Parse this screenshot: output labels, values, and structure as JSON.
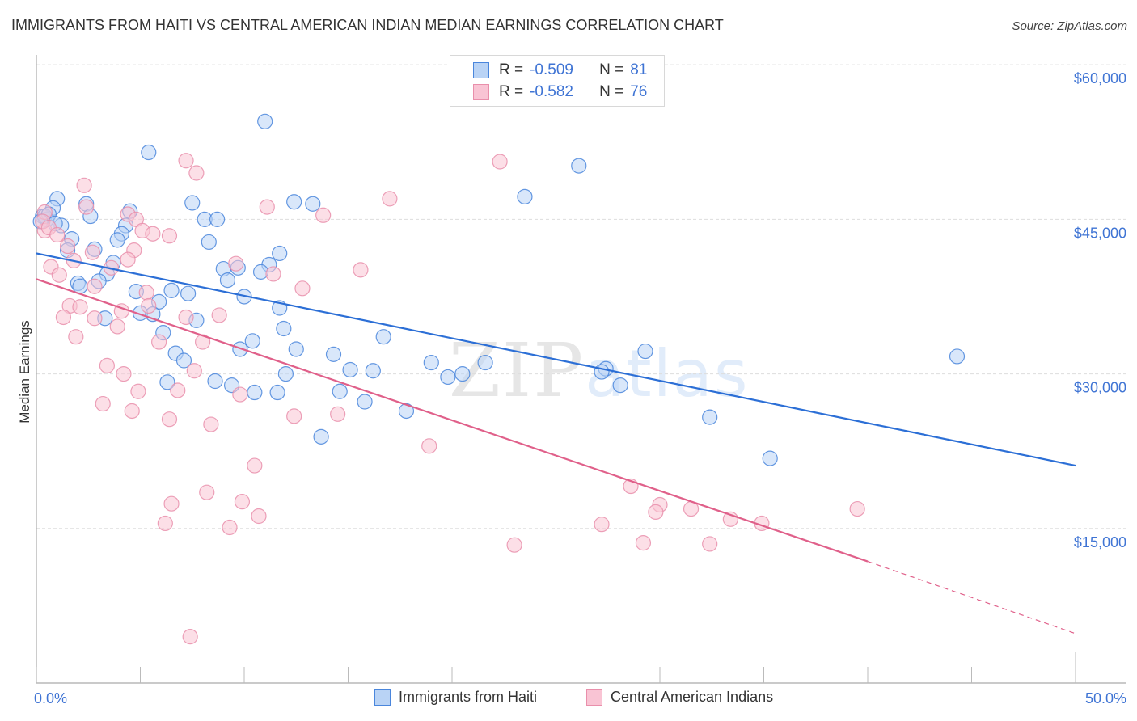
{
  "header": {
    "title": "IMMIGRANTS FROM HAITI VS CENTRAL AMERICAN INDIAN MEDIAN EARNINGS CORRELATION CHART",
    "source": "Source: ZipAtlas.com"
  },
  "legend": {
    "rows": [
      {
        "r_label": "R =",
        "r_value": "-0.509",
        "n_label": "N =",
        "n_value": "81"
      },
      {
        "r_label": "R =",
        "r_value": "-0.582",
        "n_label": "N =",
        "n_value": "76"
      }
    ]
  },
  "bottom_legend": [
    "Immigrants from Haiti",
    "Central American Indians"
  ],
  "watermark": {
    "zip": "ZIP",
    "atlas": "atlas"
  },
  "colors": {
    "blue_fill": "#b9d3f5",
    "blue_stroke": "#4a86dc",
    "blue_line": "#2c6fd6",
    "pink_fill": "#f9c4d4",
    "pink_stroke": "#e98fab",
    "pink_line": "#e0608a",
    "tick_label": "#3f74d4"
  },
  "chart_data": {
    "type": "scatter",
    "title": "IMMIGRANTS FROM HAITI VS CENTRAL AMERICAN INDIAN MEDIAN EARNINGS CORRELATION CHART",
    "xlabel": "",
    "ylabel": "Median Earnings",
    "xlim": [
      0,
      50
    ],
    "ylim": [
      0,
      62000
    ],
    "x_tick_labels": [
      "0.0%",
      "50.0%"
    ],
    "y_ticks": [
      15000,
      30000,
      45000,
      60000
    ],
    "y_tick_labels": [
      "$15,000",
      "$30,000",
      "$45,000",
      "$60,000"
    ],
    "grid": true,
    "legend_position": "top-center",
    "series": [
      {
        "name": "Immigrants from Haiti",
        "R": -0.509,
        "N": 81,
        "trend": {
          "x": [
            0,
            50
          ],
          "y": [
            41700,
            21100
          ]
        },
        "points": [
          [
            11.0,
            54500
          ],
          [
            5.4,
            51500
          ],
          [
            26.1,
            50200
          ],
          [
            23.5,
            47200
          ],
          [
            1.0,
            47000
          ],
          [
            7.5,
            46600
          ],
          [
            12.4,
            46700
          ],
          [
            13.3,
            46500
          ],
          [
            2.4,
            46500
          ],
          [
            0.8,
            46100
          ],
          [
            4.5,
            45800
          ],
          [
            2.6,
            45300
          ],
          [
            0.3,
            45300
          ],
          [
            0.5,
            45000
          ],
          [
            8.1,
            45000
          ],
          [
            8.7,
            45000
          ],
          [
            1.2,
            44400
          ],
          [
            4.3,
            44400
          ],
          [
            1.7,
            43100
          ],
          [
            4.1,
            43600
          ],
          [
            3.9,
            43000
          ],
          [
            8.3,
            42800
          ],
          [
            1.5,
            42000
          ],
          [
            2.8,
            42100
          ],
          [
            11.7,
            41700
          ],
          [
            3.7,
            40800
          ],
          [
            11.2,
            40600
          ],
          [
            9.0,
            40200
          ],
          [
            9.7,
            40300
          ],
          [
            10.8,
            39900
          ],
          [
            3.4,
            39700
          ],
          [
            9.2,
            39100
          ],
          [
            3.0,
            39000
          ],
          [
            2.0,
            38800
          ],
          [
            2.1,
            38500
          ],
          [
            6.5,
            38100
          ],
          [
            4.8,
            38000
          ],
          [
            7.3,
            37800
          ],
          [
            10.0,
            37500
          ],
          [
            5.9,
            37000
          ],
          [
            11.7,
            36400
          ],
          [
            5.0,
            35900
          ],
          [
            5.6,
            35800
          ],
          [
            3.3,
            35400
          ],
          [
            7.7,
            35200
          ],
          [
            6.1,
            34000
          ],
          [
            11.9,
            34400
          ],
          [
            16.7,
            33600
          ],
          [
            10.4,
            33200
          ],
          [
            12.5,
            32400
          ],
          [
            9.8,
            32400
          ],
          [
            29.3,
            32200
          ],
          [
            44.3,
            31700
          ],
          [
            6.7,
            32000
          ],
          [
            14.3,
            31900
          ],
          [
            7.1,
            31300
          ],
          [
            21.6,
            31100
          ],
          [
            19.0,
            31100
          ],
          [
            15.1,
            30400
          ],
          [
            16.2,
            30300
          ],
          [
            27.4,
            30500
          ],
          [
            27.2,
            30200
          ],
          [
            20.5,
            30000
          ],
          [
            19.8,
            29700
          ],
          [
            12.0,
            30000
          ],
          [
            6.3,
            29200
          ],
          [
            8.6,
            29300
          ],
          [
            9.4,
            28900
          ],
          [
            28.1,
            28900
          ],
          [
            11.6,
            28200
          ],
          [
            14.6,
            28300
          ],
          [
            10.5,
            28200
          ],
          [
            15.8,
            27300
          ],
          [
            17.8,
            26400
          ],
          [
            32.4,
            25800
          ],
          [
            13.7,
            23900
          ],
          [
            35.3,
            21800
          ],
          [
            0.4,
            45300
          ],
          [
            0.6,
            45500
          ],
          [
            0.2,
            44800
          ],
          [
            0.9,
            44600
          ]
        ]
      },
      {
        "name": "Central American Indians",
        "R": -0.582,
        "N": 76,
        "trend": {
          "x": [
            0,
            40
          ],
          "y": [
            39200,
            11800
          ],
          "dashed_extension": {
            "x": [
              40,
              50
            ],
            "y": [
              11800,
              4800
            ]
          }
        },
        "points": [
          [
            22.3,
            50600
          ],
          [
            7.2,
            50700
          ],
          [
            7.7,
            49500
          ],
          [
            2.3,
            48300
          ],
          [
            17.0,
            47000
          ],
          [
            11.1,
            46200
          ],
          [
            2.4,
            46200
          ],
          [
            4.4,
            45500
          ],
          [
            13.8,
            45400
          ],
          [
            4.8,
            45000
          ],
          [
            0.4,
            45700
          ],
          [
            0.4,
            43900
          ],
          [
            5.1,
            43900
          ],
          [
            5.6,
            43600
          ],
          [
            6.4,
            43400
          ],
          [
            1.5,
            42400
          ],
          [
            4.7,
            42000
          ],
          [
            2.7,
            41800
          ],
          [
            4.4,
            41100
          ],
          [
            1.8,
            41000
          ],
          [
            9.6,
            40700
          ],
          [
            15.6,
            40100
          ],
          [
            0.7,
            40400
          ],
          [
            1.1,
            39600
          ],
          [
            11.4,
            39700
          ],
          [
            2.8,
            38500
          ],
          [
            12.8,
            38300
          ],
          [
            5.3,
            37900
          ],
          [
            1.6,
            36600
          ],
          [
            5.4,
            36600
          ],
          [
            2.1,
            36500
          ],
          [
            4.1,
            36100
          ],
          [
            8.8,
            35700
          ],
          [
            1.3,
            35500
          ],
          [
            2.8,
            35400
          ],
          [
            7.2,
            35500
          ],
          [
            3.9,
            34600
          ],
          [
            1.9,
            33600
          ],
          [
            5.9,
            33100
          ],
          [
            8.0,
            33100
          ],
          [
            3.4,
            30800
          ],
          [
            4.2,
            30000
          ],
          [
            7.6,
            30300
          ],
          [
            6.8,
            28400
          ],
          [
            4.9,
            28300
          ],
          [
            9.8,
            28000
          ],
          [
            3.2,
            27100
          ],
          [
            4.6,
            26400
          ],
          [
            6.4,
            25600
          ],
          [
            12.4,
            25900
          ],
          [
            14.5,
            26100
          ],
          [
            8.4,
            25100
          ],
          [
            18.9,
            23000
          ],
          [
            10.5,
            21100
          ],
          [
            8.2,
            18500
          ],
          [
            28.6,
            19100
          ],
          [
            6.5,
            17400
          ],
          [
            9.9,
            17600
          ],
          [
            30.0,
            17300
          ],
          [
            31.5,
            16900
          ],
          [
            39.5,
            16900
          ],
          [
            29.8,
            16600
          ],
          [
            10.7,
            16200
          ],
          [
            33.4,
            15900
          ],
          [
            34.9,
            15500
          ],
          [
            27.2,
            15400
          ],
          [
            6.2,
            15500
          ],
          [
            9.3,
            15100
          ],
          [
            23.0,
            13400
          ],
          [
            29.2,
            13600
          ],
          [
            32.4,
            13500
          ],
          [
            7.4,
            4500
          ],
          [
            0.3,
            44800
          ],
          [
            0.6,
            44200
          ],
          [
            1.0,
            43500
          ],
          [
            3.6,
            40300
          ]
        ]
      }
    ]
  }
}
